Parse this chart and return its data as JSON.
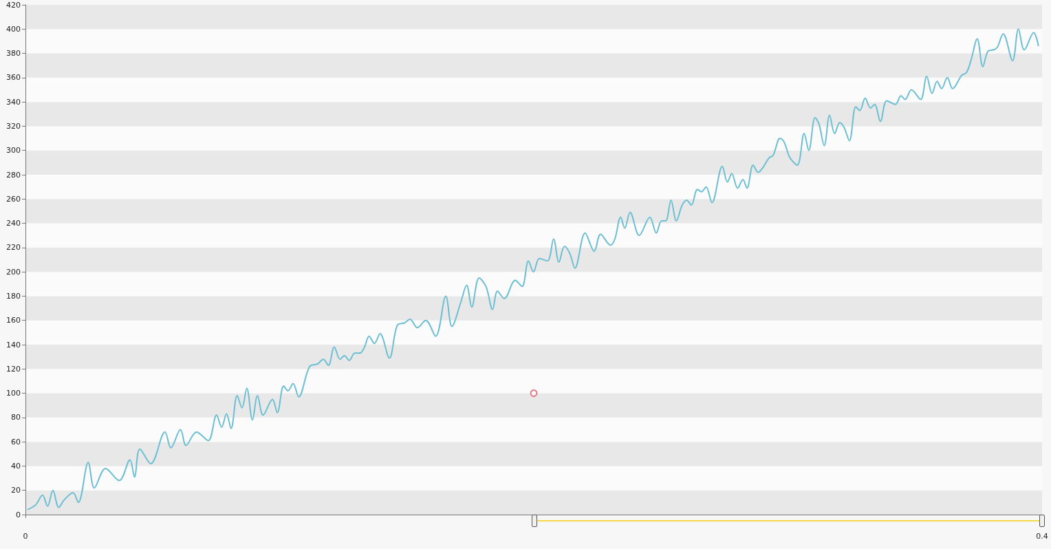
{
  "chart_data": {
    "type": "line",
    "xlim": [
      0,
      0.4
    ],
    "xticks": [
      0,
      0.4
    ],
    "ylim": [
      0,
      420
    ],
    "yticks": [
      0,
      20,
      40,
      60,
      80,
      100,
      120,
      140,
      160,
      180,
      200,
      220,
      240,
      260,
      280,
      300,
      320,
      340,
      360,
      380,
      400,
      420
    ],
    "line_style": "solid",
    "series": [
      {
        "color": "#6cbfd3",
        "x": [
          0.0008,
          0.004,
          0.0067,
          0.0087,
          0.0108,
          0.0131,
          0.0152,
          0.0187,
          0.0208,
          0.0247,
          0.0271,
          0.0315,
          0.0369,
          0.0411,
          0.0429,
          0.045,
          0.0493,
          0.0549,
          0.0572,
          0.061,
          0.0632,
          0.0673,
          0.0719,
          0.0752,
          0.0772,
          0.0791,
          0.0809,
          0.0833,
          0.0852,
          0.0871,
          0.0893,
          0.0913,
          0.0935,
          0.0972,
          0.0991,
          0.1016,
          0.1033,
          0.1053,
          0.1075,
          0.1118,
          0.1149,
          0.1172,
          0.1192,
          0.1215,
          0.1238,
          0.1255,
          0.1274,
          0.1296,
          0.1316,
          0.1334,
          0.1352,
          0.1373,
          0.1395,
          0.1432,
          0.1463,
          0.1492,
          0.1513,
          0.1542,
          0.1575,
          0.1614,
          0.1654,
          0.1678,
          0.1713,
          0.1736,
          0.1756,
          0.1785,
          0.1812,
          0.1838,
          0.1857,
          0.1884,
          0.1927,
          0.1954,
          0.1979,
          0.1999,
          0.2022,
          0.2054,
          0.2078,
          0.2099,
          0.2121,
          0.2142,
          0.2162,
          0.2202,
          0.2238,
          0.2263,
          0.2302,
          0.2319,
          0.2342,
          0.2358,
          0.2379,
          0.2415,
          0.2457,
          0.2482,
          0.2503,
          0.2519,
          0.254,
          0.2561,
          0.2584,
          0.2602,
          0.262,
          0.2644,
          0.266,
          0.2678,
          0.2701,
          0.2742,
          0.2762,
          0.2779,
          0.2802,
          0.2823,
          0.2839,
          0.2863,
          0.2883,
          0.2902,
          0.2926,
          0.2942,
          0.2969,
          0.2985,
          0.3008,
          0.3037,
          0.3064,
          0.3082,
          0.3107,
          0.3122,
          0.3143,
          0.3164,
          0.3184,
          0.3204,
          0.3221,
          0.3242,
          0.3267,
          0.3283,
          0.3304,
          0.3325,
          0.3341,
          0.3364,
          0.3389,
          0.3423,
          0.3445,
          0.3461,
          0.3486,
          0.3522,
          0.3546,
          0.3567,
          0.3587,
          0.3605,
          0.3627,
          0.3648,
          0.3684,
          0.3702,
          0.372,
          0.3745,
          0.3767,
          0.3788,
          0.3811,
          0.3824,
          0.3847,
          0.3884,
          0.3907,
          0.393,
          0.3967,
          0.3986
        ],
        "values": [
          4,
          8,
          16,
          7,
          20,
          6,
          12,
          18,
          10,
          43,
          22,
          38,
          28,
          45,
          31,
          54,
          42,
          68,
          55,
          70,
          57,
          68,
          61,
          82,
          72,
          83,
          71,
          98,
          88,
          104,
          78,
          98,
          82,
          95,
          84,
          106,
          102,
          108,
          97,
          122,
          124,
          128,
          123,
          138,
          128,
          131,
          127,
          133,
          133,
          138,
          147,
          141,
          149,
          129,
          156,
          158,
          161,
          154,
          160,
          147,
          180,
          155,
          175,
          189,
          171,
          195,
          188,
          169,
          184,
          178,
          193,
          188,
          209,
          200,
          211,
          209,
          227,
          208,
          221,
          215,
          203,
          232,
          217,
          231,
          222,
          227,
          245,
          236,
          249,
          230,
          245,
          232,
          242,
          242,
          259,
          242,
          255,
          259,
          255,
          268,
          266,
          270,
          257,
          287,
          274,
          281,
          269,
          276,
          269,
          288,
          282,
          286,
          294,
          296,
          310,
          307,
          294,
          288,
          314,
          300,
          327,
          322,
          304,
          329,
          314,
          323,
          319,
          308,
          336,
          333,
          343,
          335,
          338,
          324,
          341,
          338,
          345,
          342,
          350,
          342,
          361,
          347,
          357,
          351,
          360,
          351,
          362,
          364,
          374,
          392,
          369,
          382,
          383,
          385,
          396,
          374,
          400,
          383,
          397,
          386
        ]
      },
      {
        "type": "scatter",
        "color": "#e0566a",
        "x": [
          0.2
        ],
        "values": [
          100
        ]
      }
    ]
  }
}
